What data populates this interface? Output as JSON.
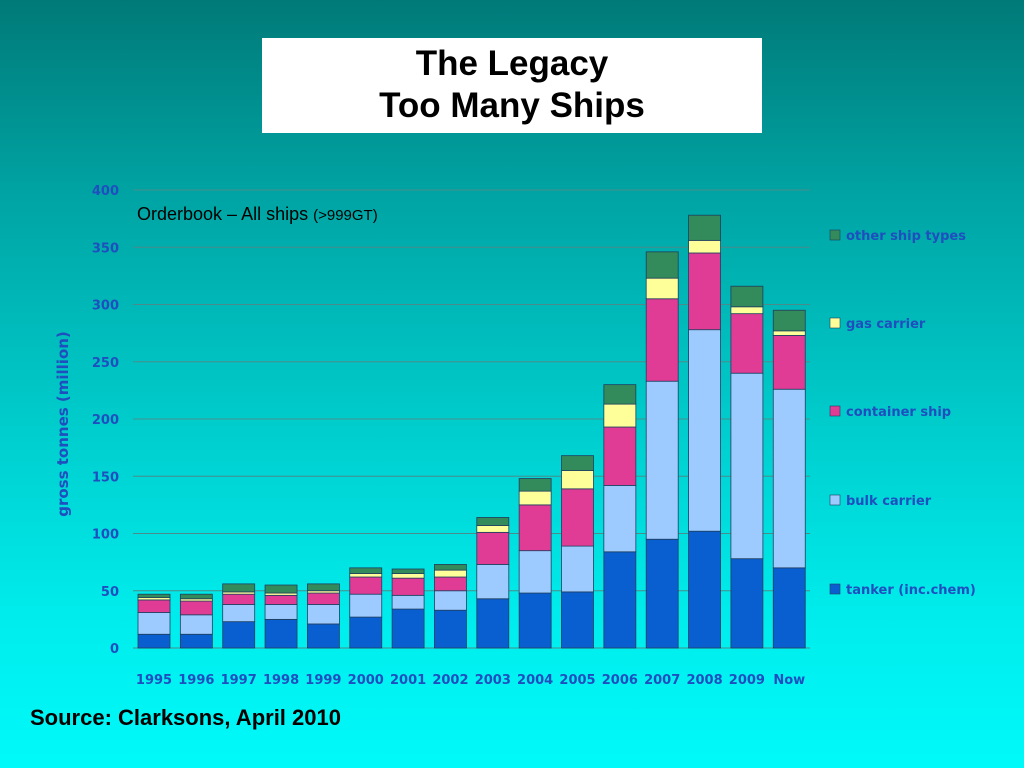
{
  "header": {
    "title_line1": "The Legacy",
    "title_line2": "Too Many Ships"
  },
  "footer": {
    "source": "Source: Clarksons, April 2010"
  },
  "chart_data": {
    "type": "bar",
    "stacked": true,
    "title": "Orderbook – All ships",
    "title_suffix": "(>999GT)",
    "ylabel": "gross tonnes (million)",
    "xlabel": "",
    "ylim": [
      0,
      400
    ],
    "yticks": [
      0,
      50,
      100,
      150,
      200,
      250,
      300,
      350,
      400
    ],
    "grid": true,
    "legend_position": "right",
    "categories": [
      "1995",
      "1996",
      "1997",
      "1998",
      "1999",
      "2000",
      "2001",
      "2002",
      "2003",
      "2004",
      "2005",
      "2006",
      "2007",
      "2008",
      "2009",
      "Now"
    ],
    "series": [
      {
        "name": "tanker (inc.chem)",
        "color": "#0a5fd0",
        "values": [
          12,
          12,
          23,
          25,
          21,
          27,
          34,
          33,
          43,
          48,
          49,
          84,
          95,
          102,
          78,
          70
        ]
      },
      {
        "name": "bulk carrier",
        "color": "#9dcbff",
        "values": [
          19,
          17,
          15,
          13,
          17,
          20,
          12,
          17,
          30,
          37,
          40,
          58,
          138,
          176,
          162,
          156
        ]
      },
      {
        "name": "container ship",
        "color": "#e03c95",
        "values": [
          11,
          12,
          9,
          8,
          10,
          15,
          15,
          12,
          28,
          40,
          50,
          51,
          72,
          67,
          52,
          47
        ]
      },
      {
        "name": "gas carrier",
        "color": "#ffff99",
        "values": [
          2,
          2,
          2,
          2,
          2,
          3,
          4,
          6,
          6,
          12,
          16,
          20,
          18,
          11,
          6,
          4
        ]
      },
      {
        "name": "other ship types",
        "color": "#338a5a",
        "values": [
          3,
          4,
          7,
          7,
          6,
          5,
          4,
          5,
          7,
          11,
          13,
          17,
          23,
          22,
          18,
          18
        ]
      }
    ]
  }
}
